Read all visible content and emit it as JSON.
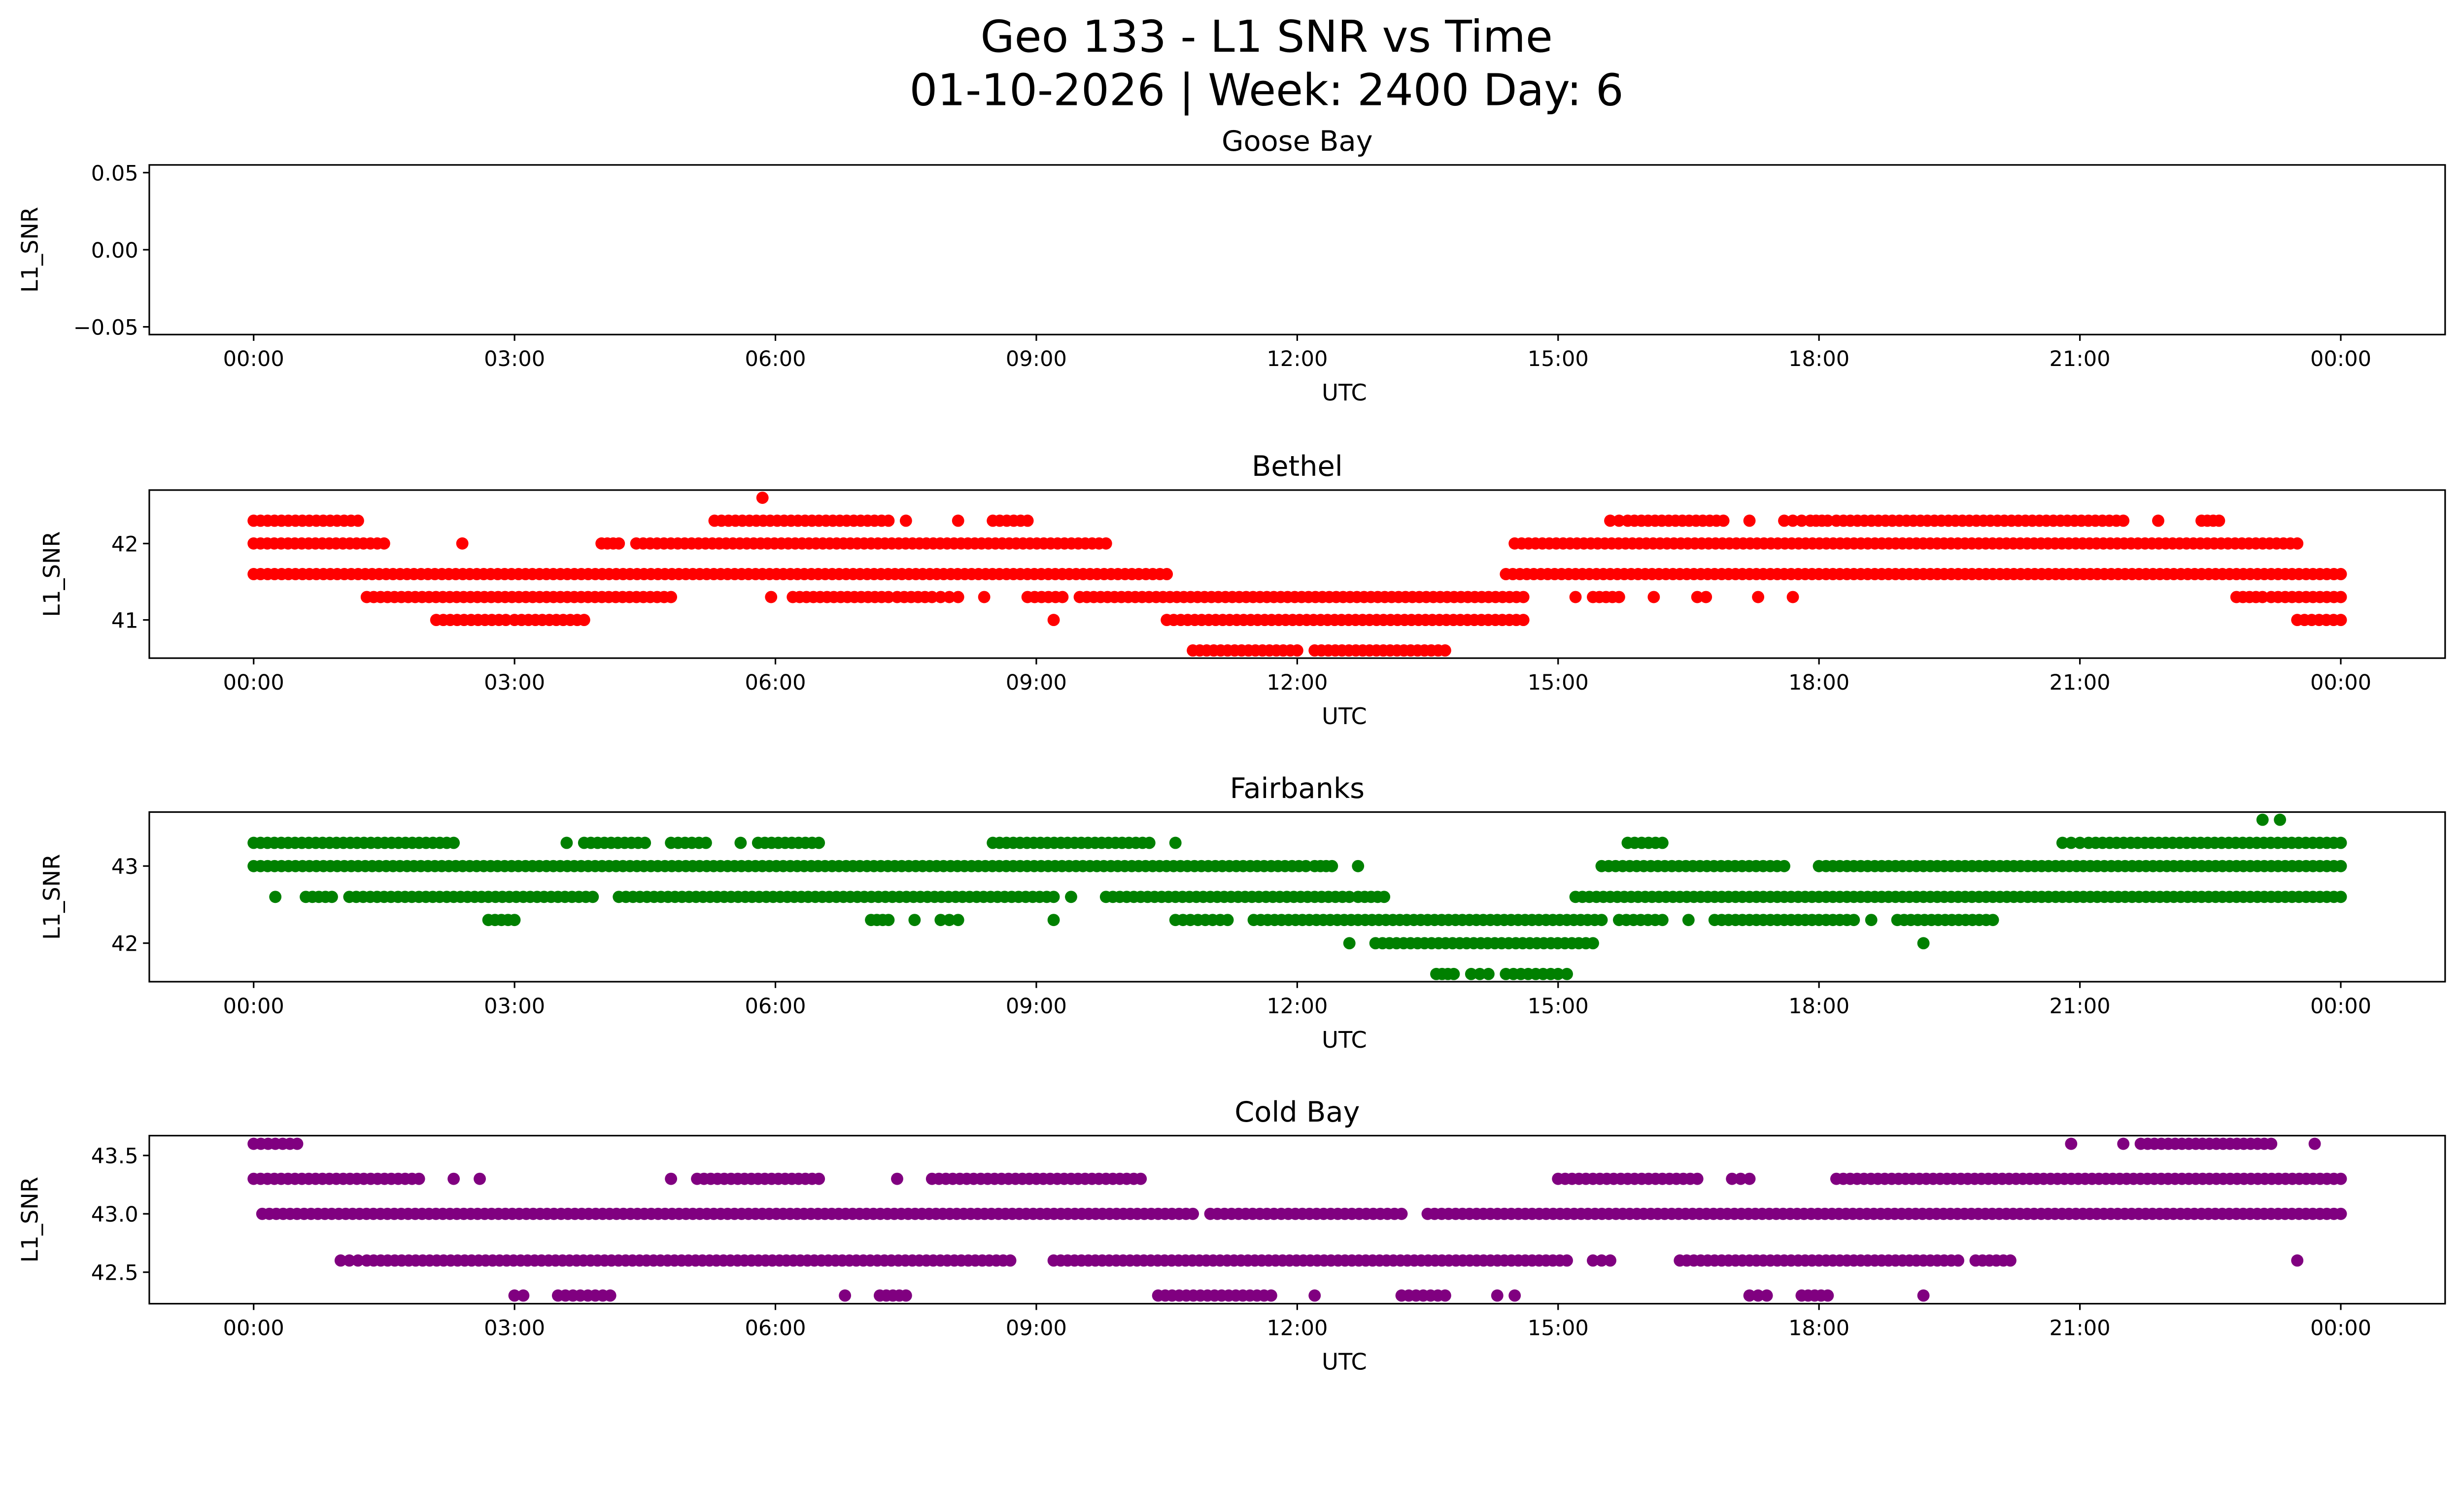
{
  "title_line1": "Geo 133 - L1 SNR vs Time",
  "title_line2": "01-10-2026 | Week: 2400 Day: 6",
  "chart_data": [
    {
      "type": "scatter",
      "title": "Goose Bay",
      "xlabel": "UTC",
      "ylabel": "L1_SNR",
      "color": "#ff0000",
      "xlim": [
        -1.2,
        25.2
      ],
      "ylim": [
        -0.055,
        0.055
      ],
      "yticks": [
        -0.05,
        0.0,
        0.05
      ],
      "ytick_labels": [
        "−0.05",
        "0.00",
        "0.05"
      ],
      "runs": []
    },
    {
      "type": "scatter",
      "title": "Bethel",
      "xlabel": "UTC",
      "ylabel": "L1_SNR",
      "color": "#ff0000",
      "xlim": [
        -1.2,
        25.2
      ],
      "ylim": [
        40.5,
        42.7
      ],
      "yticks": [
        41,
        42
      ],
      "ytick_labels": [
        "41",
        "42"
      ],
      "runs": [
        [
          5.85,
          5.85,
          42.6
        ],
        [
          0,
          1.2,
          42.3
        ],
        [
          5.3,
          7.3,
          42.3
        ],
        [
          7.5,
          7.5,
          42.3
        ],
        [
          8.1,
          8.1,
          42.3
        ],
        [
          8.5,
          8.9,
          42.3
        ],
        [
          15.6,
          15.7,
          42.3
        ],
        [
          15.8,
          16.9,
          42.3
        ],
        [
          17.2,
          17.2,
          42.3
        ],
        [
          17.6,
          17.8,
          42.3
        ],
        [
          17.9,
          18.1,
          42.3
        ],
        [
          18.2,
          21.5,
          42.3
        ],
        [
          21.9,
          21.9,
          42.3
        ],
        [
          22.4,
          22.6,
          42.3
        ],
        [
          0,
          1.5,
          42.0
        ],
        [
          2.4,
          2.4,
          42.0
        ],
        [
          4.0,
          4.2,
          42.0
        ],
        [
          4.4,
          9.8,
          42.0
        ],
        [
          14.5,
          23.5,
          42.0
        ],
        [
          0,
          10.5,
          41.6
        ],
        [
          14.4,
          24,
          41.6
        ],
        [
          1.3,
          4.8,
          41.3
        ],
        [
          5.95,
          5.95,
          41.3
        ],
        [
          6.2,
          7.3,
          41.3
        ],
        [
          7.4,
          7.8,
          41.3
        ],
        [
          7.9,
          8.1,
          41.3
        ],
        [
          8.4,
          8.4,
          41.3
        ],
        [
          8.9,
          9.3,
          41.3
        ],
        [
          9.5,
          14.6,
          41.3
        ],
        [
          15.2,
          15.2,
          41.3
        ],
        [
          15.4,
          15.7,
          41.3
        ],
        [
          16.1,
          16.1,
          41.3
        ],
        [
          16.6,
          16.7,
          41.3
        ],
        [
          17.3,
          17.3,
          41.3
        ],
        [
          17.7,
          17.7,
          41.3
        ],
        [
          22.8,
          23.1,
          41.3
        ],
        [
          23.2,
          24,
          41.3
        ],
        [
          2.1,
          2.9,
          41.0
        ],
        [
          3.0,
          3.8,
          41.0
        ],
        [
          9.2,
          9.2,
          41.0
        ],
        [
          10.5,
          14.6,
          41.0
        ],
        [
          23.5,
          24,
          41.0
        ],
        [
          10.8,
          12.0,
          40.6
        ],
        [
          12.2,
          13.7,
          40.6
        ]
      ]
    },
    {
      "type": "scatter",
      "title": "Fairbanks",
      "xlabel": "UTC",
      "ylabel": "L1_SNR",
      "color": "#008000",
      "xlim": [
        -1.2,
        25.2
      ],
      "ylim": [
        41.5,
        43.7
      ],
      "yticks": [
        42,
        43
      ],
      "ytick_labels": [
        "42",
        "43"
      ],
      "runs": [
        [
          23.1,
          23.1,
          43.6
        ],
        [
          23.3,
          23.3,
          43.6
        ],
        [
          0,
          2.3,
          43.3
        ],
        [
          3.6,
          3.6,
          43.3
        ],
        [
          3.8,
          4.5,
          43.3
        ],
        [
          4.8,
          5.2,
          43.3
        ],
        [
          5.6,
          5.6,
          43.3
        ],
        [
          5.8,
          6.5,
          43.3
        ],
        [
          8.5,
          10.3,
          43.3
        ],
        [
          10.6,
          10.6,
          43.3
        ],
        [
          15.8,
          16.2,
          43.3
        ],
        [
          20.8,
          21.0,
          43.3
        ],
        [
          21.1,
          24,
          43.3
        ],
        [
          0,
          12.1,
          43.0
        ],
        [
          12.2,
          12.4,
          43.0
        ],
        [
          12.7,
          12.7,
          43.0
        ],
        [
          15.5,
          17.6,
          43.0
        ],
        [
          18.0,
          24,
          43.0
        ],
        [
          0.25,
          0.25,
          42.6
        ],
        [
          0.6,
          0.9,
          42.6
        ],
        [
          1.1,
          3.9,
          42.6
        ],
        [
          4.2,
          9.2,
          42.6
        ],
        [
          9.4,
          9.4,
          42.6
        ],
        [
          9.8,
          12.6,
          42.6
        ],
        [
          12.7,
          13.0,
          42.6
        ],
        [
          15.2,
          24,
          42.6
        ],
        [
          2.7,
          3.0,
          42.3
        ],
        [
          7.1,
          7.3,
          42.3
        ],
        [
          7.6,
          7.6,
          42.3
        ],
        [
          7.9,
          8.1,
          42.3
        ],
        [
          9.2,
          9.2,
          42.3
        ],
        [
          10.6,
          11.2,
          42.3
        ],
        [
          11.5,
          15.5,
          42.3
        ],
        [
          15.7,
          16.2,
          42.3
        ],
        [
          16.5,
          16.5,
          42.3
        ],
        [
          16.8,
          18.4,
          42.3
        ],
        [
          18.6,
          18.6,
          42.3
        ],
        [
          18.9,
          20.0,
          42.3
        ],
        [
          12.6,
          12.6,
          42.0
        ],
        [
          12.9,
          15.4,
          42.0
        ],
        [
          19.2,
          19.2,
          42.0
        ],
        [
          13.6,
          13.8,
          41.6
        ],
        [
          14.0,
          14.2,
          41.6
        ],
        [
          14.4,
          15.0,
          41.6
        ],
        [
          15.1,
          15.1,
          41.6
        ]
      ]
    },
    {
      "type": "scatter",
      "title": "Cold Bay",
      "xlabel": "UTC",
      "ylabel": "L1_SNR",
      "color": "#800080",
      "xlim": [
        -1.2,
        25.2
      ],
      "ylim": [
        42.23,
        43.67
      ],
      "yticks": [
        42.5,
        43.0,
        43.5
      ],
      "ytick_labels": [
        "42.5",
        "43.0",
        "43.5"
      ],
      "runs": [
        [
          0,
          0.5,
          43.6
        ],
        [
          20.9,
          20.9,
          43.6
        ],
        [
          21.5,
          21.5,
          43.6
        ],
        [
          21.7,
          23.2,
          43.6
        ],
        [
          23.7,
          23.7,
          43.6
        ],
        [
          0,
          1.9,
          43.3
        ],
        [
          2.3,
          2.3,
          43.3
        ],
        [
          2.6,
          2.6,
          43.3
        ],
        [
          4.8,
          4.8,
          43.3
        ],
        [
          5.1,
          6.5,
          43.3
        ],
        [
          7.4,
          7.4,
          43.3
        ],
        [
          7.8,
          10.2,
          43.3
        ],
        [
          15.0,
          16.6,
          43.3
        ],
        [
          17.0,
          17.2,
          43.3
        ],
        [
          18.2,
          24,
          43.3
        ],
        [
          0.1,
          10.8,
          43.0
        ],
        [
          11.0,
          13.2,
          43.0
        ],
        [
          13.5,
          24,
          43.0
        ],
        [
          1.0,
          1.2,
          42.6
        ],
        [
          1.3,
          8.7,
          42.6
        ],
        [
          9.2,
          15.1,
          42.6
        ],
        [
          15.4,
          15.6,
          42.6
        ],
        [
          16.4,
          19.6,
          42.6
        ],
        [
          19.8,
          20.2,
          42.6
        ],
        [
          23.5,
          23.5,
          42.6
        ],
        [
          3.0,
          3.1,
          42.3
        ],
        [
          3.5,
          4.1,
          42.3
        ],
        [
          6.8,
          6.8,
          42.3
        ],
        [
          7.2,
          7.5,
          42.3
        ],
        [
          10.4,
          11.7,
          42.3
        ],
        [
          12.2,
          12.2,
          42.3
        ],
        [
          13.2,
          13.7,
          42.3
        ],
        [
          14.3,
          14.3,
          42.3
        ],
        [
          14.5,
          14.5,
          42.3
        ],
        [
          17.2,
          17.4,
          42.3
        ],
        [
          17.8,
          18.1,
          42.3
        ],
        [
          19.2,
          19.2,
          42.3
        ]
      ]
    }
  ],
  "xticks": [
    0,
    3,
    6,
    9,
    12,
    15,
    18,
    21,
    24
  ],
  "xtick_labels": [
    "00:00",
    "03:00",
    "06:00",
    "09:00",
    "12:00",
    "15:00",
    "18:00",
    "21:00",
    "00:00"
  ]
}
